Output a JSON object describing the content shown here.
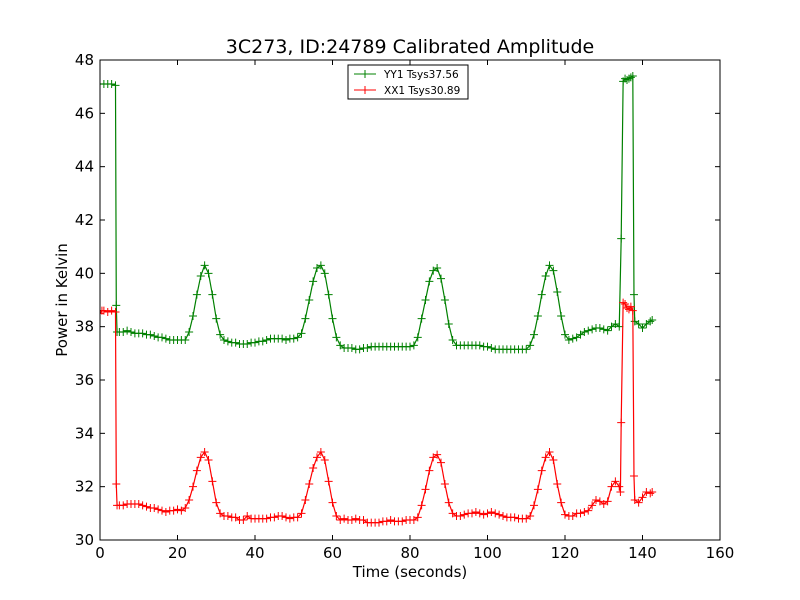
{
  "chart_data": {
    "type": "line",
    "title": "3C273, ID:24789 Calibrated Amplitude",
    "xlabel": "Time (seconds)",
    "ylabel": "Power in Kelvin",
    "xlim": [
      0,
      160
    ],
    "ylim": [
      30,
      48
    ],
    "xticks": [
      0,
      20,
      40,
      60,
      80,
      100,
      120,
      140,
      160
    ],
    "yticks": [
      30,
      32,
      34,
      36,
      38,
      40,
      42,
      44,
      46,
      48
    ],
    "grid": false,
    "legend_position": "top-center",
    "marker": "+",
    "series": [
      {
        "name": "YY1 Tsys37.56",
        "color": "#008000",
        "points": [
          [
            0,
            47.1
          ],
          [
            1,
            47.1
          ],
          [
            2,
            47.1
          ],
          [
            3,
            47.1
          ],
          [
            4,
            47.05
          ],
          [
            4.2,
            38.8
          ],
          [
            4.4,
            37.8
          ],
          [
            5,
            37.8
          ],
          [
            6,
            37.8
          ],
          [
            7,
            37.85
          ],
          [
            8,
            37.8
          ],
          [
            9,
            37.75
          ],
          [
            10,
            37.75
          ],
          [
            11,
            37.75
          ],
          [
            12,
            37.7
          ],
          [
            13,
            37.7
          ],
          [
            14,
            37.65
          ],
          [
            15,
            37.6
          ],
          [
            16,
            37.6
          ],
          [
            17,
            37.55
          ],
          [
            18,
            37.5
          ],
          [
            19,
            37.5
          ],
          [
            20,
            37.5
          ],
          [
            21,
            37.5
          ],
          [
            22,
            37.5
          ],
          [
            23,
            37.8
          ],
          [
            24,
            38.4
          ],
          [
            25,
            39.2
          ],
          [
            26,
            39.9
          ],
          [
            27,
            40.3
          ],
          [
            28,
            40.0
          ],
          [
            29,
            39.2
          ],
          [
            30,
            38.3
          ],
          [
            31,
            37.7
          ],
          [
            32,
            37.5
          ],
          [
            33,
            37.45
          ],
          [
            34,
            37.4
          ],
          [
            35,
            37.4
          ],
          [
            36,
            37.35
          ],
          [
            37,
            37.35
          ],
          [
            38,
            37.35
          ],
          [
            39,
            37.4
          ],
          [
            40,
            37.4
          ],
          [
            41,
            37.45
          ],
          [
            42,
            37.45
          ],
          [
            43,
            37.5
          ],
          [
            44,
            37.55
          ],
          [
            45,
            37.55
          ],
          [
            46,
            37.55
          ],
          [
            47,
            37.55
          ],
          [
            48,
            37.5
          ],
          [
            49,
            37.55
          ],
          [
            50,
            37.55
          ],
          [
            51,
            37.6
          ],
          [
            52,
            37.75
          ],
          [
            53,
            38.3
          ],
          [
            54,
            39.0
          ],
          [
            55,
            39.7
          ],
          [
            56,
            40.2
          ],
          [
            57,
            40.3
          ],
          [
            58,
            40.0
          ],
          [
            59,
            39.2
          ],
          [
            60,
            38.3
          ],
          [
            61,
            37.6
          ],
          [
            62,
            37.3
          ],
          [
            63,
            37.2
          ],
          [
            64,
            37.2
          ],
          [
            65,
            37.2
          ],
          [
            66,
            37.15
          ],
          [
            67,
            37.15
          ],
          [
            68,
            37.2
          ],
          [
            69,
            37.2
          ],
          [
            70,
            37.25
          ],
          [
            71,
            37.25
          ],
          [
            72,
            37.25
          ],
          [
            73,
            37.25
          ],
          [
            74,
            37.25
          ],
          [
            75,
            37.25
          ],
          [
            76,
            37.25
          ],
          [
            77,
            37.25
          ],
          [
            78,
            37.25
          ],
          [
            79,
            37.25
          ],
          [
            80,
            37.25
          ],
          [
            81,
            37.3
          ],
          [
            82,
            37.6
          ],
          [
            83,
            38.3
          ],
          [
            84,
            39.0
          ],
          [
            85,
            39.7
          ],
          [
            86,
            40.1
          ],
          [
            87,
            40.2
          ],
          [
            88,
            39.8
          ],
          [
            89,
            39.0
          ],
          [
            90,
            38.1
          ],
          [
            91,
            37.5
          ],
          [
            92,
            37.3
          ],
          [
            93,
            37.3
          ],
          [
            94,
            37.3
          ],
          [
            95,
            37.3
          ],
          [
            96,
            37.3
          ],
          [
            97,
            37.3
          ],
          [
            98,
            37.3
          ],
          [
            99,
            37.25
          ],
          [
            100,
            37.25
          ],
          [
            101,
            37.2
          ],
          [
            102,
            37.15
          ],
          [
            103,
            37.15
          ],
          [
            104,
            37.15
          ],
          [
            105,
            37.15
          ],
          [
            106,
            37.15
          ],
          [
            107,
            37.15
          ],
          [
            108,
            37.15
          ],
          [
            109,
            37.15
          ],
          [
            110,
            37.15
          ],
          [
            111,
            37.3
          ],
          [
            112,
            37.7
          ],
          [
            113,
            38.4
          ],
          [
            114,
            39.2
          ],
          [
            115,
            39.9
          ],
          [
            116,
            40.3
          ],
          [
            117,
            40.1
          ],
          [
            118,
            39.3
          ],
          [
            119,
            38.4
          ],
          [
            120,
            37.7
          ],
          [
            121,
            37.5
          ],
          [
            122,
            37.55
          ],
          [
            123,
            37.6
          ],
          [
            124,
            37.7
          ],
          [
            125,
            37.8
          ],
          [
            126,
            37.85
          ],
          [
            127,
            37.9
          ],
          [
            128,
            37.95
          ],
          [
            129,
            37.95
          ],
          [
            130,
            37.9
          ],
          [
            131,
            37.85
          ],
          [
            132,
            38.0
          ],
          [
            133,
            38.1
          ],
          [
            134,
            38.0
          ],
          [
            134.5,
            41.3
          ],
          [
            135,
            47.2
          ],
          [
            135.5,
            47.3
          ],
          [
            136,
            47.25
          ],
          [
            136.5,
            47.3
          ],
          [
            137,
            47.35
          ],
          [
            137.5,
            47.4
          ],
          [
            137.8,
            39.2
          ],
          [
            138,
            38.2
          ],
          [
            139,
            38.1
          ],
          [
            140,
            37.95
          ],
          [
            141,
            38.1
          ],
          [
            142,
            38.2
          ],
          [
            142.5,
            38.25
          ]
        ]
      },
      {
        "name": "XX1 Tsys30.89",
        "color": "#ff0000",
        "points": [
          [
            0,
            38.5
          ],
          [
            0.5,
            38.6
          ],
          [
            1,
            38.6
          ],
          [
            2,
            38.55
          ],
          [
            3,
            38.6
          ],
          [
            4,
            38.55
          ],
          [
            4.2,
            32.1
          ],
          [
            4.4,
            31.3
          ],
          [
            5,
            31.3
          ],
          [
            6,
            31.3
          ],
          [
            7,
            31.35
          ],
          [
            8,
            31.35
          ],
          [
            9,
            31.35
          ],
          [
            10,
            31.35
          ],
          [
            11,
            31.3
          ],
          [
            12,
            31.25
          ],
          [
            13,
            31.2
          ],
          [
            14,
            31.2
          ],
          [
            15,
            31.15
          ],
          [
            16,
            31.1
          ],
          [
            17,
            31.05
          ],
          [
            18,
            31.1
          ],
          [
            19,
            31.1
          ],
          [
            20,
            31.15
          ],
          [
            21,
            31.1
          ],
          [
            22,
            31.2
          ],
          [
            23,
            31.5
          ],
          [
            24,
            32.0
          ],
          [
            25,
            32.6
          ],
          [
            26,
            33.1
          ],
          [
            27,
            33.3
          ],
          [
            28,
            33.0
          ],
          [
            29,
            32.2
          ],
          [
            30,
            31.4
          ],
          [
            31,
            31.0
          ],
          [
            32,
            30.9
          ],
          [
            33,
            30.9
          ],
          [
            34,
            30.85
          ],
          [
            35,
            30.85
          ],
          [
            36,
            30.75
          ],
          [
            37,
            30.75
          ],
          [
            38,
            30.9
          ],
          [
            39,
            30.8
          ],
          [
            40,
            30.8
          ],
          [
            41,
            30.8
          ],
          [
            42,
            30.8
          ],
          [
            43,
            30.8
          ],
          [
            44,
            30.85
          ],
          [
            45,
            30.85
          ],
          [
            46,
            30.9
          ],
          [
            47,
            30.9
          ],
          [
            48,
            30.85
          ],
          [
            49,
            30.8
          ],
          [
            50,
            30.85
          ],
          [
            51,
            30.85
          ],
          [
            52,
            31.0
          ],
          [
            53,
            31.5
          ],
          [
            54,
            32.1
          ],
          [
            55,
            32.7
          ],
          [
            56,
            33.1
          ],
          [
            57,
            33.3
          ],
          [
            58,
            33.0
          ],
          [
            59,
            32.2
          ],
          [
            60,
            31.4
          ],
          [
            61,
            30.9
          ],
          [
            62,
            30.75
          ],
          [
            63,
            30.8
          ],
          [
            64,
            30.75
          ],
          [
            65,
            30.75
          ],
          [
            66,
            30.8
          ],
          [
            67,
            30.75
          ],
          [
            68,
            30.75
          ],
          [
            69,
            30.65
          ],
          [
            70,
            30.65
          ],
          [
            71,
            30.65
          ],
          [
            72,
            30.65
          ],
          [
            73,
            30.7
          ],
          [
            74,
            30.7
          ],
          [
            75,
            30.75
          ],
          [
            76,
            30.7
          ],
          [
            77,
            30.7
          ],
          [
            78,
            30.7
          ],
          [
            79,
            30.75
          ],
          [
            80,
            30.75
          ],
          [
            81,
            30.75
          ],
          [
            82,
            30.85
          ],
          [
            83,
            31.3
          ],
          [
            84,
            31.9
          ],
          [
            85,
            32.6
          ],
          [
            86,
            33.1
          ],
          [
            87,
            33.2
          ],
          [
            88,
            32.9
          ],
          [
            89,
            32.1
          ],
          [
            90,
            31.4
          ],
          [
            91,
            31.0
          ],
          [
            92,
            30.9
          ],
          [
            93,
            30.9
          ],
          [
            94,
            30.95
          ],
          [
            95,
            31.0
          ],
          [
            96,
            31.0
          ],
          [
            97,
            31.05
          ],
          [
            98,
            31.0
          ],
          [
            99,
            30.95
          ],
          [
            100,
            31.0
          ],
          [
            101,
            31.05
          ],
          [
            102,
            31.0
          ],
          [
            103,
            30.95
          ],
          [
            104,
            30.9
          ],
          [
            105,
            30.85
          ],
          [
            106,
            30.85
          ],
          [
            107,
            30.85
          ],
          [
            108,
            30.8
          ],
          [
            109,
            30.8
          ],
          [
            110,
            30.8
          ],
          [
            111,
            30.9
          ],
          [
            112,
            31.3
          ],
          [
            113,
            31.9
          ],
          [
            114,
            32.6
          ],
          [
            115,
            33.1
          ],
          [
            116,
            33.3
          ],
          [
            117,
            33.0
          ],
          [
            118,
            32.1
          ],
          [
            119,
            31.4
          ],
          [
            120,
            30.95
          ],
          [
            121,
            30.9
          ],
          [
            122,
            30.9
          ],
          [
            123,
            31.0
          ],
          [
            124,
            31.0
          ],
          [
            125,
            31.05
          ],
          [
            126,
            31.1
          ],
          [
            127,
            31.3
          ],
          [
            128,
            31.5
          ],
          [
            129,
            31.45
          ],
          [
            130,
            31.35
          ],
          [
            131,
            31.45
          ],
          [
            132,
            32.0
          ],
          [
            133,
            32.2
          ],
          [
            134,
            32.0
          ],
          [
            134.3,
            31.8
          ],
          [
            134.5,
            34.4
          ],
          [
            135,
            38.9
          ],
          [
            135.5,
            38.85
          ],
          [
            136,
            38.7
          ],
          [
            136.5,
            38.65
          ],
          [
            137,
            38.75
          ],
          [
            137.5,
            38.6
          ],
          [
            137.8,
            32.4
          ],
          [
            138,
            31.5
          ],
          [
            139,
            31.4
          ],
          [
            140,
            31.6
          ],
          [
            141,
            31.8
          ],
          [
            142,
            31.75
          ],
          [
            142.5,
            31.8
          ]
        ]
      }
    ]
  }
}
